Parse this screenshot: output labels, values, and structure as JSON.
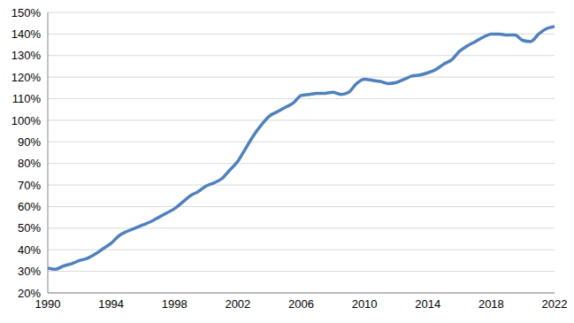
{
  "chart_data": {
    "type": "line",
    "x": [
      1990,
      1990.5,
      1991,
      1991.5,
      1992,
      1992.5,
      1993,
      1993.5,
      1994,
      1994.5,
      1995,
      1995.5,
      1996,
      1996.5,
      1997,
      1997.5,
      1998,
      1998.5,
      1999,
      1999.5,
      2000,
      2000.5,
      2001,
      2001.5,
      2002,
      2002.5,
      2003,
      2003.5,
      2004,
      2004.5,
      2005,
      2005.5,
      2006,
      2006.5,
      2007,
      2007.5,
      2008,
      2008.5,
      2009,
      2009.5,
      2010,
      2010.5,
      2011,
      2011.5,
      2012,
      2012.5,
      2013,
      2013.5,
      2014,
      2014.5,
      2015,
      2015.5,
      2016,
      2016.5,
      2017,
      2017.5,
      2018,
      2018.5,
      2019,
      2019.5,
      2020,
      2020.5,
      2021,
      2021.5,
      2022
    ],
    "values": [
      31.5,
      31,
      32.5,
      33.5,
      35,
      36,
      38,
      40.5,
      43,
      46.5,
      48.5,
      50,
      51.5,
      53,
      55,
      57,
      59,
      62,
      65,
      67,
      69.5,
      71,
      73,
      77,
      81,
      87,
      93,
      98,
      102,
      104,
      106,
      108,
      111.5,
      112,
      112.5,
      112.5,
      113,
      112,
      113,
      117,
      119,
      118.5,
      118,
      117,
      117.5,
      119,
      120.5,
      121,
      122,
      123.5,
      126,
      128,
      132,
      134.5,
      136.5,
      138.5,
      140,
      140,
      139.5,
      139.5,
      137,
      136.5,
      140,
      142.5,
      143.5
    ],
    "color": "#4f81bd",
    "xlim": [
      1990,
      2022
    ],
    "xticks": [
      1990,
      1994,
      1998,
      2002,
      2006,
      2010,
      2014,
      2018,
      2022
    ],
    "ylim": [
      20,
      150
    ],
    "yticks": [
      {
        "value": 20,
        "label": "20%"
      },
      {
        "value": 30,
        "label": "30%"
      },
      {
        "value": 40,
        "label": "40%"
      },
      {
        "value": 50,
        "label": "50%"
      },
      {
        "value": 60,
        "label": "60%"
      },
      {
        "value": 70,
        "label": "70%"
      },
      {
        "value": 80,
        "label": "80%"
      },
      {
        "value": 90,
        "label": "90%"
      },
      {
        "value": 100,
        "label": "100%"
      },
      {
        "value": 110,
        "label": "110%"
      },
      {
        "value": 120,
        "label": "120%"
      },
      {
        "value": 130,
        "label": "130%"
      },
      {
        "value": 140,
        "label": "140%"
      },
      {
        "value": 150,
        "label": "150%"
      }
    ],
    "grid": true
  }
}
